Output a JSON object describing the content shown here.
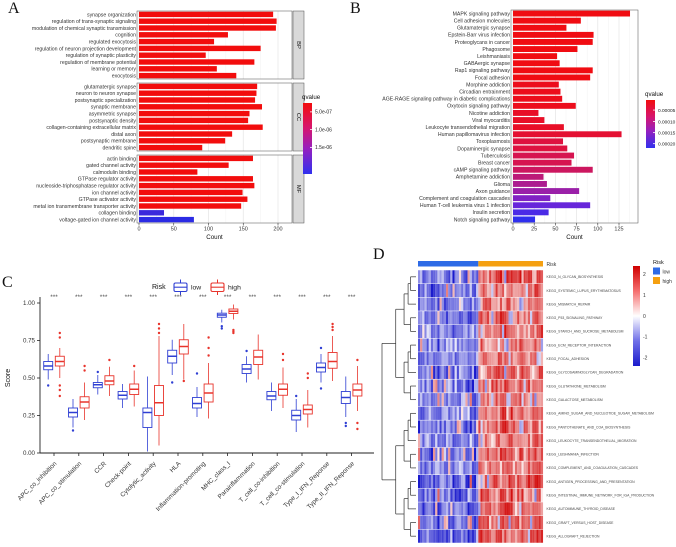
{
  "chart_data": [
    {
      "panel": "A",
      "type": "bar",
      "orientation": "horizontal",
      "xlabel": "Count",
      "x_ticks": [
        0,
        50,
        100,
        150,
        200
      ],
      "xmax": 215,
      "legend": {
        "title": "qvalue",
        "tick_labels": [
          "5.0e-07",
          "1.0e-06",
          "1.5e-06"
        ],
        "gradient": [
          [
            "0%",
            "#F20D0D"
          ],
          [
            "35%",
            "#D6156E"
          ],
          [
            "65%",
            "#9420C0"
          ],
          [
            "100%",
            "#3030EE"
          ]
        ]
      },
      "facets": [
        {
          "name": "BP",
          "categories": [
            "synapse organization",
            "regulation of trans-synaptic signaling",
            "modulation of chemical synaptic transmission",
            "cognition",
            "regulated exocytosis",
            "regulation of neuron projection development",
            "regulation of synaptic plasticity",
            "regulation of membrane potential",
            "learning or memory",
            "exocytosis"
          ],
          "values": [
            193,
            198,
            197,
            128,
            108,
            175,
            96,
            166,
            112,
            140
          ],
          "colors": [
            "#F20D0D",
            "#F20D0D",
            "#F20D0D",
            "#F20D0D",
            "#F20D0D",
            "#F20D0D",
            "#F20D0D",
            "#F20D0D",
            "#F20D0D",
            "#F20D0D"
          ]
        },
        {
          "name": "CC",
          "categories": [
            "glutamatergic synapse",
            "neuron to neuron synapse",
            "postsynaptic specialization",
            "synaptic membrane",
            "asymmetric synapse",
            "postsynaptic density",
            "collagen-containing extracellular matrix",
            "distal axon",
            "postsynaptic membrane",
            "dendritic spine"
          ],
          "values": [
            170,
            169,
            167,
            177,
            159,
            157,
            178,
            134,
            124,
            91
          ],
          "colors": [
            "#F20D0D",
            "#F20D0D",
            "#F20D0D",
            "#F20D0D",
            "#F20D0D",
            "#F20D0D",
            "#F20D0D",
            "#F20D0D",
            "#F20D0D",
            "#F20D0D"
          ]
        },
        {
          "name": "MF",
          "categories": [
            "actin binding",
            "gated channel activity",
            "calmodulin binding",
            "GTPase regulator activity",
            "nucleoside-triphosphatase regulator activity",
            "ion channel activity",
            "GTPase activator activity",
            "metal ion transmembrane transporter activity",
            "collagen binding",
            "voltage-gated ion channel activity"
          ],
          "values": [
            164,
            129,
            84,
            164,
            166,
            149,
            156,
            147,
            36,
            79
          ],
          "colors": [
            "#F20D0D",
            "#F20D0D",
            "#F20D0D",
            "#F20D0D",
            "#F20D0D",
            "#F20D0D",
            "#F20D0D",
            "#F20D0D",
            "#3A28DC",
            "#2B2BE4"
          ]
        }
      ]
    },
    {
      "panel": "B",
      "type": "bar",
      "orientation": "horizontal",
      "xlabel": "Count",
      "x_ticks": [
        0,
        25,
        50,
        75,
        100,
        125
      ],
      "xmax": 148,
      "legend": {
        "title": "qvalue",
        "tick_labels": [
          "0.00005",
          "0.00010",
          "0.00015",
          "0.00020"
        ],
        "gradient": [
          [
            "0%",
            "#F20D0D"
          ],
          [
            "35%",
            "#D6156E"
          ],
          [
            "65%",
            "#9420C0"
          ],
          [
            "100%",
            "#3030EE"
          ]
        ]
      },
      "categories": [
        "MAPK signaling pathway",
        "Cell adhesion molecules",
        "Glutamatergic synapse",
        "Epstein-Barr virus infection",
        "Proteoglycans in cancer",
        "Phagosome",
        "Leishmaniasis",
        "GABAergic synapse",
        "Rap1 signaling pathway",
        "Focal adhesion",
        "Morphine addiction",
        "Circadian entrainment",
        "AGE-RAGE signaling pathway in diabetic complications",
        "Oxytocin signaling pathway",
        "Nicotine addiction",
        "Viral myocarditis",
        "Leukocyte transendothelial migration",
        "Human papillomavirus infection",
        "Toxoplasmosis",
        "Dopaminergic synapse",
        "Tuberculosis",
        "Breast cancer",
        "cAMP signaling pathway",
        "Amphetamine addiction",
        "Glioma",
        "Axon guidance",
        "Complement and coagulation cascades",
        "Human T-cell leukemia virus 1 infection",
        "Insulin secretion",
        "Notch signaling pathway"
      ],
      "values": [
        138,
        80,
        63,
        95,
        94,
        76,
        52,
        55,
        94,
        91,
        54,
        56,
        58,
        74,
        30,
        37,
        60,
        128,
        59,
        64,
        72,
        69,
        94,
        36,
        40,
        78,
        44,
        91,
        42,
        26
      ],
      "colors": [
        "#F00C12",
        "#F00C12",
        "#F00C12",
        "#F00C12",
        "#F00C12",
        "#F00C12",
        "#F00C12",
        "#F00C12",
        "#F00C12",
        "#F00C12",
        "#EC0D1C",
        "#EC0D1C",
        "#EC0D1C",
        "#EC0D1C",
        "#E80F27",
        "#E80F27",
        "#E80F27",
        "#E41032",
        "#DE1240",
        "#DE1240",
        "#D61450",
        "#D61450",
        "#CC175F",
        "#BC1A78",
        "#AC1D90",
        "#9A20A8",
        "#8122C4",
        "#6726DA",
        "#4A2AE6",
        "#2F2FEE"
      ]
    },
    {
      "panel": "C",
      "type": "boxplot",
      "legend": {
        "title": "Risk",
        "items": [
          {
            "label": "low",
            "color": "#2F3FD3"
          },
          {
            "label": "high",
            "color": "#E8342C"
          }
        ]
      },
      "ylabel": "Score",
      "y_ticks": [
        "0.00",
        "0.25",
        "0.50",
        "0.75",
        "1.00"
      ],
      "significance": "***",
      "categories": [
        "APC_co_inhibition",
        "APC_co_stimulation",
        "CCR",
        "Check-point",
        "Cytolytic_activity",
        "HLA",
        "Inflammation-promoting",
        "MHC_class_I",
        "Parainflammation",
        "T_cell_co-inhibition",
        "T_cell_co-stimulation",
        "Type_I_IFN_Reponse",
        "Type_II_IFN_Reponse"
      ],
      "series": [
        {
          "name": "low",
          "color": "#2F3FD3",
          "boxes": [
            {
              "lo": 0.49,
              "q1": 0.555,
              "med": 0.58,
              "q3": 0.61,
              "hi": 0.66,
              "out": [
                0.45
              ]
            },
            {
              "lo": 0.17,
              "q1": 0.24,
              "med": 0.27,
              "q3": 0.3,
              "hi": 0.36,
              "out": [
                0.15
              ]
            },
            {
              "lo": 0.39,
              "q1": 0.435,
              "med": 0.455,
              "q3": 0.47,
              "hi": 0.52,
              "out": [
                0.54
              ]
            },
            {
              "lo": 0.3,
              "q1": 0.36,
              "med": 0.385,
              "q3": 0.41,
              "hi": 0.46,
              "out": []
            },
            {
              "lo": 0.01,
              "q1": 0.17,
              "med": 0.27,
              "q3": 0.3,
              "hi": 0.51,
              "out": []
            },
            {
              "lo": 0.52,
              "q1": 0.6,
              "med": 0.645,
              "q3": 0.685,
              "hi": 0.755,
              "out": [
                0.47
              ]
            },
            {
              "lo": 0.24,
              "q1": 0.3,
              "med": 0.33,
              "q3": 0.37,
              "hi": 0.44,
              "out": [
                0.53
              ]
            },
            {
              "lo": 0.87,
              "q1": 0.905,
              "med": 0.92,
              "q3": 0.932,
              "hi": 0.955,
              "out": [
                0.845,
                0.83
              ]
            },
            {
              "lo": 0.47,
              "q1": 0.53,
              "med": 0.56,
              "q3": 0.59,
              "hi": 0.645,
              "out": [
                0.68
              ]
            },
            {
              "lo": 0.28,
              "q1": 0.355,
              "med": 0.38,
              "q3": 0.41,
              "hi": 0.47,
              "out": []
            },
            {
              "lo": 0.14,
              "q1": 0.22,
              "med": 0.25,
              "q3": 0.285,
              "hi": 0.36,
              "out": [
                0.38
              ]
            },
            {
              "lo": 0.47,
              "q1": 0.54,
              "med": 0.57,
              "q3": 0.6,
              "hi": 0.66,
              "out": [
                0.43,
                0.7
              ]
            },
            {
              "lo": 0.24,
              "q1": 0.33,
              "med": 0.37,
              "q3": 0.41,
              "hi": 0.51,
              "out": [
                0.2,
                0.18
              ]
            }
          ]
        },
        {
          "name": "high",
          "color": "#E8342C",
          "boxes": [
            {
              "lo": 0.5,
              "q1": 0.58,
              "med": 0.61,
              "q3": 0.645,
              "hi": 0.7,
              "out": [
                0.77,
                0.8,
                0.45,
                0.42,
                0.38
              ]
            },
            {
              "lo": 0.22,
              "q1": 0.3,
              "med": 0.34,
              "q3": 0.375,
              "hi": 0.47,
              "out": [
                0.55,
                0.58
              ]
            },
            {
              "lo": 0.38,
              "q1": 0.455,
              "med": 0.48,
              "q3": 0.515,
              "hi": 0.575,
              "out": [
                0.62
              ]
            },
            {
              "lo": 0.31,
              "q1": 0.39,
              "med": 0.425,
              "q3": 0.46,
              "hi": 0.55,
              "out": [
                0.58
              ]
            },
            {
              "lo": 0.05,
              "q1": 0.25,
              "med": 0.335,
              "q3": 0.45,
              "hi": 0.78,
              "out": [
                0.8,
                0.83,
                0.86
              ]
            },
            {
              "lo": 0.49,
              "q1": 0.66,
              "med": 0.71,
              "q3": 0.755,
              "hi": 0.86,
              "out": [
                0.48
              ]
            },
            {
              "lo": 0.23,
              "q1": 0.34,
              "med": 0.4,
              "q3": 0.46,
              "hi": 0.6,
              "out": [
                0.65,
                0.7,
                0.77
              ]
            },
            {
              "lo": 0.89,
              "q1": 0.93,
              "med": 0.945,
              "q3": 0.96,
              "hi": 0.99,
              "out": [
                0.82,
                0.81,
                0.8
              ]
            },
            {
              "lo": 0.49,
              "q1": 0.59,
              "med": 0.64,
              "q3": 0.685,
              "hi": 0.79,
              "out": []
            },
            {
              "lo": 0.3,
              "q1": 0.385,
              "med": 0.425,
              "q3": 0.46,
              "hi": 0.57,
              "out": [
                0.62,
                0.66
              ]
            },
            {
              "lo": 0.17,
              "q1": 0.26,
              "med": 0.29,
              "q3": 0.32,
              "hi": 0.42,
              "out": [
                0.5,
                0.53
              ]
            },
            {
              "lo": 0.48,
              "q1": 0.565,
              "med": 0.61,
              "q3": 0.67,
              "hi": 0.78,
              "out": [
                0.82,
                0.84,
                0.86
              ]
            },
            {
              "lo": 0.28,
              "q1": 0.38,
              "med": 0.42,
              "q3": 0.46,
              "hi": 0.58,
              "out": [
                0.62,
                0.2,
                0.16
              ]
            }
          ]
        }
      ]
    },
    {
      "panel": "D",
      "type": "heatmap",
      "annotation": {
        "label": "Risk",
        "groups": [
          {
            "name": "low",
            "color": "#2E6BE6",
            "n_samples": 28
          },
          {
            "name": "high",
            "color": "#F5A011",
            "n_samples": 30
          }
        ]
      },
      "rows": [
        "KEGG_N_GLYCAN_BIOSYNTHESIS",
        "KEGG_SYSTEMIC_LUPUS_ERYTHEMATOSUS",
        "KEGG_MISMATCH_REPAIR",
        "KEGG_P53_SIGNALING_PATHWAY",
        "KEGG_STARCH_AND_SUCROSE_METABOLISM",
        "KEGG_ECM_RECEPTOR_INTERACTION",
        "KEGG_FOCAL_ADHESION",
        "KEGG_GLYCOSAMINOGLYCAN_DEGRADATION",
        "KEGG_GLUTATHIONE_METABOLISM",
        "KEGG_GALACTOSE_METABOLISM",
        "KEGG_AMINO_SUGAR_AND_NUCLEOTIDE_SUGAR_METABOLISM",
        "KEGG_PANTOTHENATE_AND_COA_BIOSYNTHESIS",
        "KEGG_LEUKOCYTE_TRANSENDOTHELIAL_MIGRATION",
        "KEGG_LEISHMANIA_INFECTION",
        "KEGG_COMPLEMENT_AND_COAGULATION_CASCADES",
        "KEGG_ANTIGEN_PROCESSING_AND_PRESENTATION",
        "KEGG_INTESTINAL_IMMUNE_NETWORK_FOR_IGA_PRODUCTION",
        "KEGG_AUTOIMMUNE_THYROID_DISEASE",
        "KEGG_GRAFT_VERSUS_HOST_DISEASE",
        "KEGG_ALLOGRAFT_REJECTION"
      ],
      "group_means": {
        "low": -1.1,
        "high": 1.1
      },
      "legend": {
        "risk_title": "Risk",
        "risk_items": [
          {
            "label": "low",
            "color": "#2E6BE6"
          },
          {
            "label": "high",
            "color": "#F5A011"
          }
        ],
        "scale_ticks": [
          "2",
          "1",
          "0",
          "-1",
          "-2"
        ],
        "scale_gradient": [
          [
            "0%",
            "#CF0000"
          ],
          [
            "25%",
            "#F56E6E"
          ],
          [
            "50%",
            "#FFFFFF"
          ],
          [
            "75%",
            "#7070E8"
          ],
          [
            "100%",
            "#1A1ACC"
          ]
        ]
      }
    }
  ]
}
